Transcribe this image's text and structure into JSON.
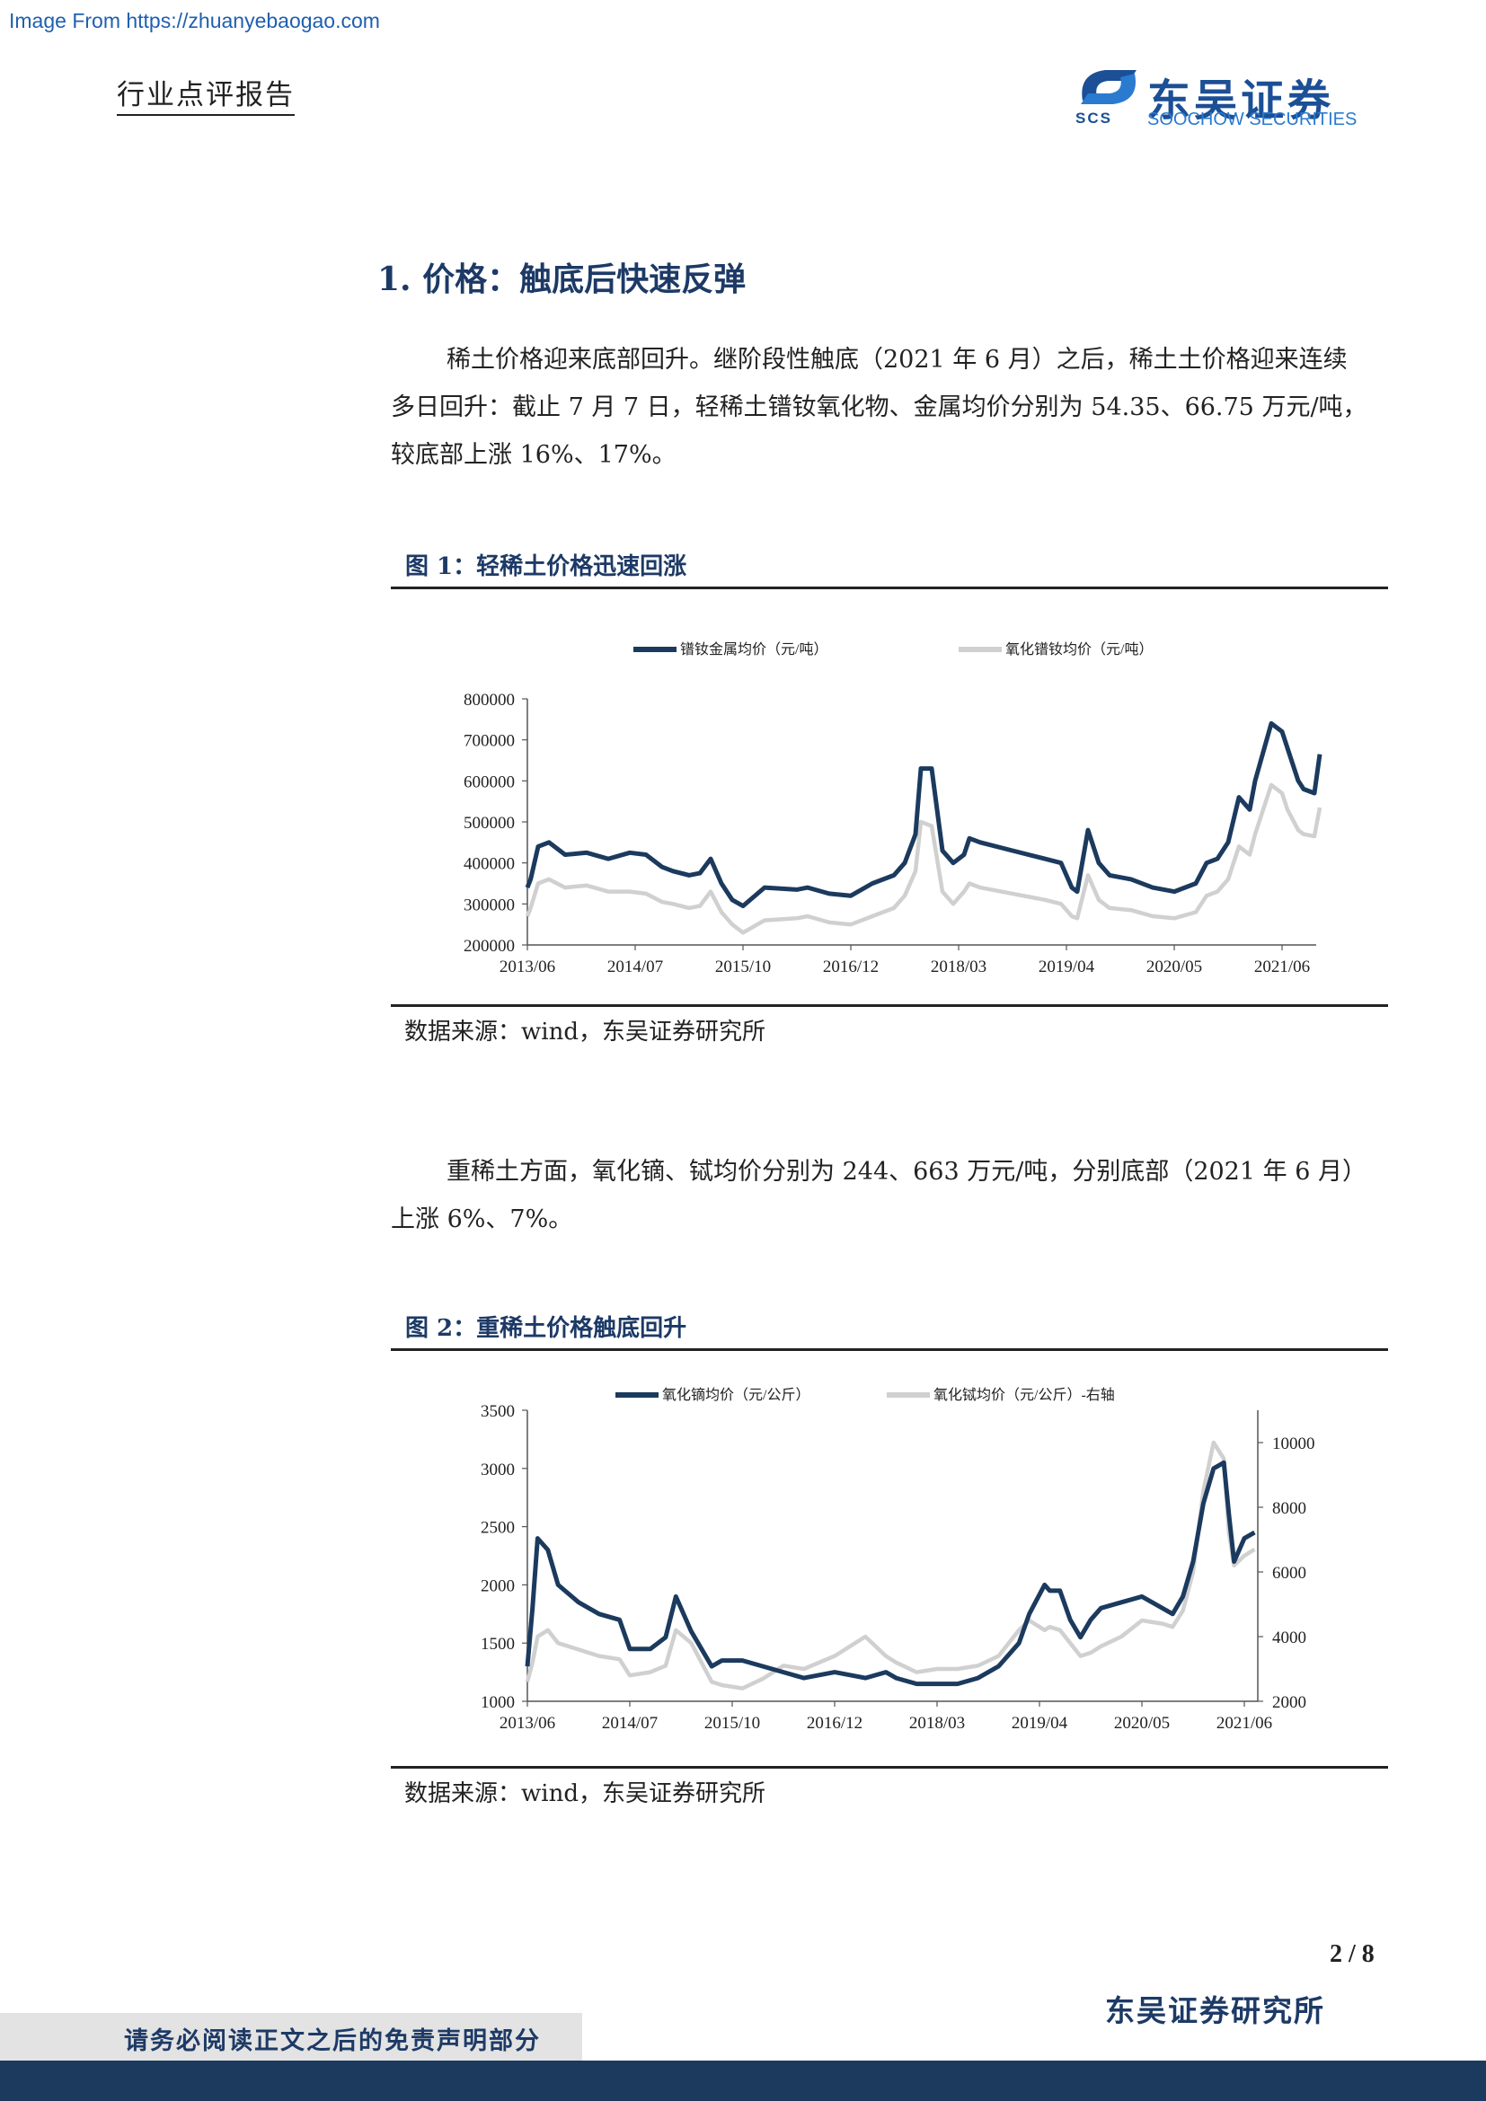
{
  "watermark": "Image From https://zhuanyebaogao.com",
  "header": {
    "report_type": "行业点评报告",
    "logo_cn": "东吴证券",
    "logo_en": "SOOCHOW SECURITIES",
    "logo_abbr": "SCS"
  },
  "section": {
    "heading": "1.  价格：触底后快速反弹"
  },
  "paragraphs": {
    "p1_l1": "稀土价格迎来底部回升。继阶段性触底（2021 年 6 月）之后，稀土土价格迎来连续",
    "p1_l2": "多日回升：截止 7 月 7 日，轻稀土镨钕氧化物、金属均价分别为 54.35、66.75 万元/吨，",
    "p1_l3": "较底部上涨 16%、17%。",
    "p2_l1": "重稀土方面，氧化镝、铽均价分别为 244、663 万元/吨，分别底部（2021 年 6 月）",
    "p2_l2": "上涨 6%、7%。"
  },
  "figure1": {
    "title": "图 1：轻稀土价格迅速回涨",
    "source": "数据来源：wind，东吴证券研究所"
  },
  "figure2": {
    "title": "图 2：重稀土价格触底回升",
    "source": "数据来源：wind，东吴证券研究所"
  },
  "chart_data": [
    {
      "type": "line",
      "categories": [
        "2013/06",
        "2014/07",
        "2015/10",
        "2016/12",
        "2018/03",
        "2019/04",
        "2020/05",
        "2021/06"
      ],
      "yticks": [
        200000,
        300000,
        400000,
        500000,
        600000,
        700000,
        800000
      ],
      "ylim": [
        200000,
        800000
      ],
      "legend_position": "top",
      "series": [
        {
          "name": "镨钕金属均价（元/吨）",
          "color": "#1b3a5e",
          "x": [
            0,
            0.03,
            0.1,
            0.2,
            0.35,
            0.55,
            0.75,
            0.95,
            1.1,
            1.25,
            1.35,
            1.5,
            1.6,
            1.7,
            1.8,
            1.9,
            2.0,
            2.2,
            2.5,
            2.6,
            2.8,
            3.0,
            3.2,
            3.4,
            3.5,
            3.6,
            3.65,
            3.75,
            3.85,
            3.95,
            4.05,
            4.1,
            4.2,
            4.5,
            4.8,
            4.95,
            5.05,
            5.1,
            5.2,
            5.3,
            5.4,
            5.6,
            5.8,
            6.0,
            6.2,
            6.3,
            6.4,
            6.5,
            6.6,
            6.7,
            6.75,
            6.9,
            7.0,
            7.05,
            7.15,
            7.2,
            7.3,
            7.35
          ],
          "values": [
            340000,
            360000,
            440000,
            450000,
            420000,
            425000,
            410000,
            425000,
            420000,
            390000,
            380000,
            370000,
            375000,
            410000,
            350000,
            310000,
            295000,
            340000,
            335000,
            340000,
            325000,
            320000,
            350000,
            370000,
            400000,
            470000,
            630000,
            630000,
            430000,
            400000,
            420000,
            460000,
            450000,
            430000,
            410000,
            400000,
            340000,
            330000,
            480000,
            400000,
            370000,
            360000,
            340000,
            330000,
            350000,
            400000,
            410000,
            450000,
            560000,
            530000,
            600000,
            740000,
            720000,
            680000,
            600000,
            580000,
            570000,
            665000
          ]
        },
        {
          "name": "氧化镨钕均价（元/吨）",
          "color": "#d0d0d0",
          "x": [
            0,
            0.03,
            0.1,
            0.2,
            0.35,
            0.55,
            0.75,
            0.95,
            1.1,
            1.25,
            1.35,
            1.5,
            1.6,
            1.7,
            1.8,
            1.9,
            2.0,
            2.2,
            2.5,
            2.6,
            2.8,
            3.0,
            3.2,
            3.4,
            3.5,
            3.6,
            3.65,
            3.75,
            3.85,
            3.95,
            4.05,
            4.1,
            4.2,
            4.5,
            4.8,
            4.95,
            5.05,
            5.1,
            5.2,
            5.3,
            5.4,
            5.6,
            5.8,
            6.0,
            6.2,
            6.3,
            6.4,
            6.5,
            6.6,
            6.7,
            6.75,
            6.9,
            7.0,
            7.05,
            7.15,
            7.2,
            7.3,
            7.35
          ],
          "values": [
            270000,
            290000,
            350000,
            360000,
            340000,
            345000,
            330000,
            330000,
            325000,
            305000,
            300000,
            290000,
            295000,
            330000,
            280000,
            250000,
            230000,
            260000,
            265000,
            270000,
            255000,
            250000,
            270000,
            290000,
            320000,
            380000,
            500000,
            490000,
            330000,
            300000,
            330000,
            350000,
            340000,
            325000,
            310000,
            300000,
            270000,
            265000,
            370000,
            310000,
            290000,
            285000,
            270000,
            265000,
            280000,
            320000,
            330000,
            360000,
            440000,
            420000,
            470000,
            590000,
            570000,
            530000,
            480000,
            470000,
            465000,
            535000
          ]
        }
      ]
    },
    {
      "type": "line",
      "categories": [
        "2013/06",
        "2014/07",
        "2015/10",
        "2016/12",
        "2018/03",
        "2019/04",
        "2020/05",
        "2021/06"
      ],
      "yticks_left": [
        1000,
        1500,
        2000,
        2500,
        3000,
        3500
      ],
      "ylim_left": [
        1000,
        3500
      ],
      "yticks_right": [
        2000,
        4000,
        6000,
        8000,
        10000
      ],
      "ylim_right": [
        2000,
        10000
      ],
      "legend_position": "top",
      "series": [
        {
          "name": "氧化镝均价（元/公斤）",
          "axis": "left",
          "color": "#1b3a5e",
          "x": [
            0,
            0.05,
            0.1,
            0.2,
            0.3,
            0.5,
            0.7,
            0.9,
            1.0,
            1.2,
            1.35,
            1.45,
            1.6,
            1.8,
            1.9,
            2.1,
            2.3,
            2.5,
            2.7,
            3.0,
            3.3,
            3.5,
            3.6,
            3.8,
            4.0,
            4.2,
            4.4,
            4.6,
            4.8,
            4.9,
            5.05,
            5.1,
            5.2,
            5.3,
            5.4,
            5.5,
            5.6,
            5.8,
            6.0,
            6.2,
            6.3,
            6.4,
            6.5,
            6.6,
            6.7,
            6.8,
            6.85,
            6.9,
            7.0,
            7.1
          ],
          "values": [
            1300,
            1800,
            2400,
            2300,
            2000,
            1850,
            1750,
            1700,
            1450,
            1450,
            1550,
            1900,
            1600,
            1300,
            1350,
            1350,
            1300,
            1250,
            1200,
            1250,
            1200,
            1250,
            1200,
            1150,
            1150,
            1150,
            1200,
            1300,
            1500,
            1750,
            2000,
            1950,
            1950,
            1700,
            1550,
            1700,
            1800,
            1850,
            1900,
            1800,
            1750,
            1900,
            2200,
            2700,
            3000,
            3050,
            2600,
            2200,
            2400,
            2450
          ]
        },
        {
          "name": "氧化铽均价（元/公斤）-右轴",
          "axis": "right",
          "color": "#d0d0d0",
          "x": [
            0,
            0.05,
            0.1,
            0.2,
            0.3,
            0.5,
            0.7,
            0.9,
            1.0,
            1.2,
            1.35,
            1.45,
            1.6,
            1.8,
            1.9,
            2.1,
            2.3,
            2.5,
            2.7,
            3.0,
            3.3,
            3.5,
            3.6,
            3.8,
            4.0,
            4.2,
            4.4,
            4.6,
            4.8,
            4.9,
            5.05,
            5.1,
            5.2,
            5.3,
            5.4,
            5.5,
            5.6,
            5.8,
            6.0,
            6.2,
            6.3,
            6.4,
            6.5,
            6.6,
            6.7,
            6.8,
            6.85,
            6.9,
            7.0,
            7.1
          ],
          "values": [
            2600,
            3200,
            4000,
            4200,
            3800,
            3600,
            3400,
            3300,
            2800,
            2900,
            3100,
            4200,
            3800,
            2600,
            2500,
            2400,
            2700,
            3100,
            3000,
            3400,
            4000,
            3400,
            3200,
            2900,
            3000,
            3000,
            3100,
            3400,
            4200,
            4500,
            4200,
            4300,
            4200,
            3800,
            3400,
            3500,
            3700,
            4000,
            4500,
            4400,
            4300,
            4800,
            6000,
            8500,
            10000,
            9500,
            7200,
            6200,
            6500,
            6700
          ]
        }
      ]
    }
  ],
  "footer": {
    "page_num": "2 / 8",
    "org": "东吴证券研究所",
    "disclaimer": "请务必阅读正文之后的免责声明部分"
  }
}
